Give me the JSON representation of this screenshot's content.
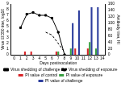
{
  "chart_data": {
    "type": "bar",
    "xlabel": "Days postinoculation",
    "ylabel": "Virus EID50 titer, log10",
    "y2label": "Antibody titer, HI",
    "categories": [
      "0",
      "1",
      "2",
      "3",
      "4",
      "5",
      "6",
      "7",
      "8",
      "9",
      "10",
      "11",
      "12",
      "13",
      "14"
    ],
    "series": [
      {
        "name": "PI value of control",
        "type": "bar",
        "axis": "y2",
        "color": "#d9262a",
        "values": [
          null,
          null,
          10,
          10,
          null,
          null,
          null,
          10,
          null,
          null,
          20,
          null,
          20,
          null,
          null
        ]
      },
      {
        "name": "PI value of exposure",
        "type": "bar",
        "axis": "y2",
        "color": "#3aa043",
        "values": [
          null,
          null,
          null,
          null,
          null,
          null,
          null,
          10,
          null,
          20,
          null,
          null,
          40,
          20,
          null
        ]
      },
      {
        "name": "PI value of challenge",
        "type": "bar",
        "axis": "y2",
        "color": "#2e3f9e",
        "values": [
          null,
          null,
          null,
          null,
          null,
          null,
          null,
          null,
          null,
          100,
          140,
          null,
          150,
          150,
          null
        ]
      },
      {
        "name": "Virus shedding of challenge",
        "type": "line",
        "color": "#000000",
        "marker": "square",
        "line_style": "solid",
        "values": [
          null,
          4.8,
          7.2,
          7.5,
          7.0,
          7.0,
          6.5,
          4.0,
          0,
          null,
          null,
          null,
          null,
          null,
          null
        ]
      },
      {
        "name": "Virus shedding of exposure",
        "type": "line",
        "color": "#000000",
        "marker": "none",
        "line_style": "dashed",
        "values": [
          null,
          null,
          null,
          null,
          null,
          4.0,
          3.5,
          2.0,
          0.5,
          null,
          null,
          null,
          null,
          null,
          null
        ]
      }
    ],
    "ylim": [
      0,
      9
    ],
    "yticks": [
      0,
      1,
      2,
      3,
      4,
      5,
      6,
      7,
      8,
      9
    ],
    "y2lim": [
      0,
      160
    ],
    "y2ticks": [
      0,
      20,
      40,
      60,
      80,
      100,
      120,
      140,
      160
    ],
    "legend": "bottom",
    "grid": false
  }
}
